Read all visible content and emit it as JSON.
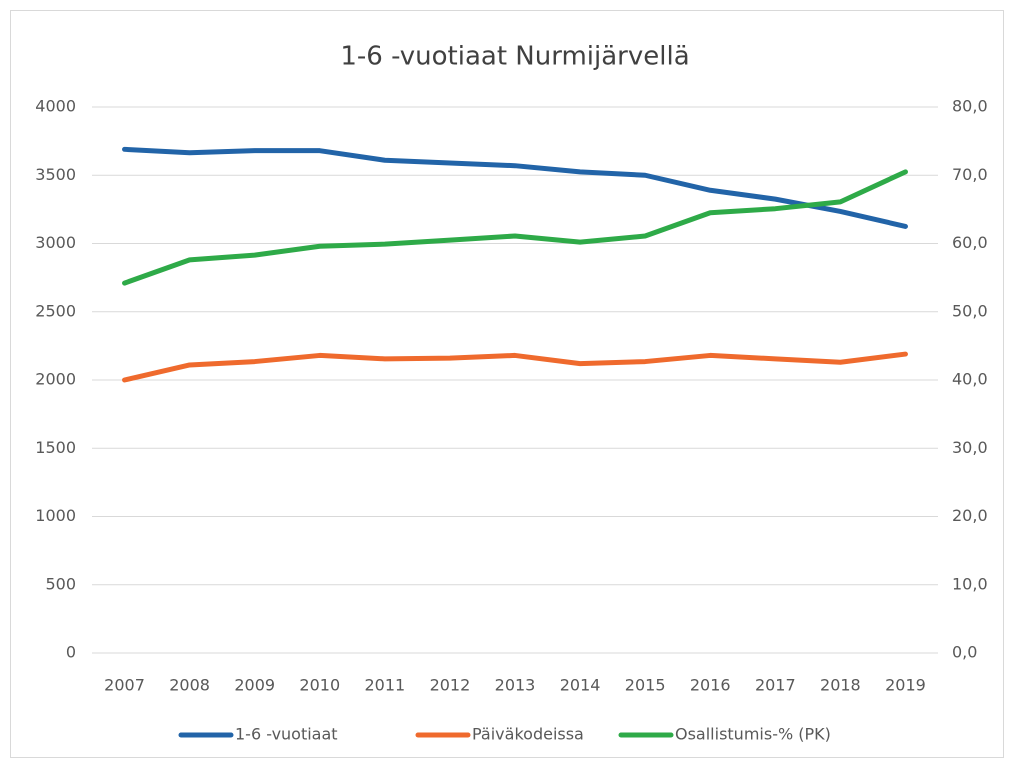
{
  "chart_data": {
    "type": "line",
    "title": "1-6 -vuotiaat Nurmijärvellä",
    "categories": [
      "2007",
      "2008",
      "2009",
      "2010",
      "2011",
      "2012",
      "2013",
      "2014",
      "2015",
      "2016",
      "2017",
      "2018",
      "2019"
    ],
    "ylim": [
      0,
      4000
    ],
    "yticks": [
      0,
      500,
      1000,
      1500,
      2000,
      2500,
      3000,
      3500,
      4000
    ],
    "y2lim": [
      0,
      80
    ],
    "y2ticks": [
      {
        "value": 0,
        "label": "0,0"
      },
      {
        "value": 10,
        "label": "10,0"
      },
      {
        "value": 20,
        "label": "20,0"
      },
      {
        "value": 30,
        "label": "30,0"
      },
      {
        "value": 40,
        "label": "40,0"
      },
      {
        "value": 50,
        "label": "50,0"
      },
      {
        "value": 60,
        "label": "60,0"
      },
      {
        "value": 70,
        "label": "70,0"
      },
      {
        "value": 80,
        "label": "80,0"
      }
    ],
    "grid": true,
    "legend": "bottom",
    "series": [
      {
        "name": "1-6 -vuotiaat",
        "color": "#2264a8",
        "values": [
          3690,
          3665,
          3680,
          3680,
          3610,
          3590,
          3570,
          3525,
          3500,
          3390,
          3325,
          3235,
          3125
        ]
      },
      {
        "name": "Päiväkodeissa",
        "color": "#ef6a2d",
        "values": [
          2000,
          2110,
          2135,
          2180,
          2155,
          2160,
          2180,
          2120,
          2135,
          2180,
          2155,
          2130,
          2190
        ]
      },
      {
        "name": "Osallistumis-% (PK)",
        "color": "#2eaa48",
        "axis": "y2",
        "values": [
          54.2,
          57.6,
          58.3,
          59.6,
          59.9,
          60.5,
          61.1,
          60.2,
          61.1,
          64.5,
          65.1,
          66.1,
          70.5
        ]
      }
    ]
  }
}
